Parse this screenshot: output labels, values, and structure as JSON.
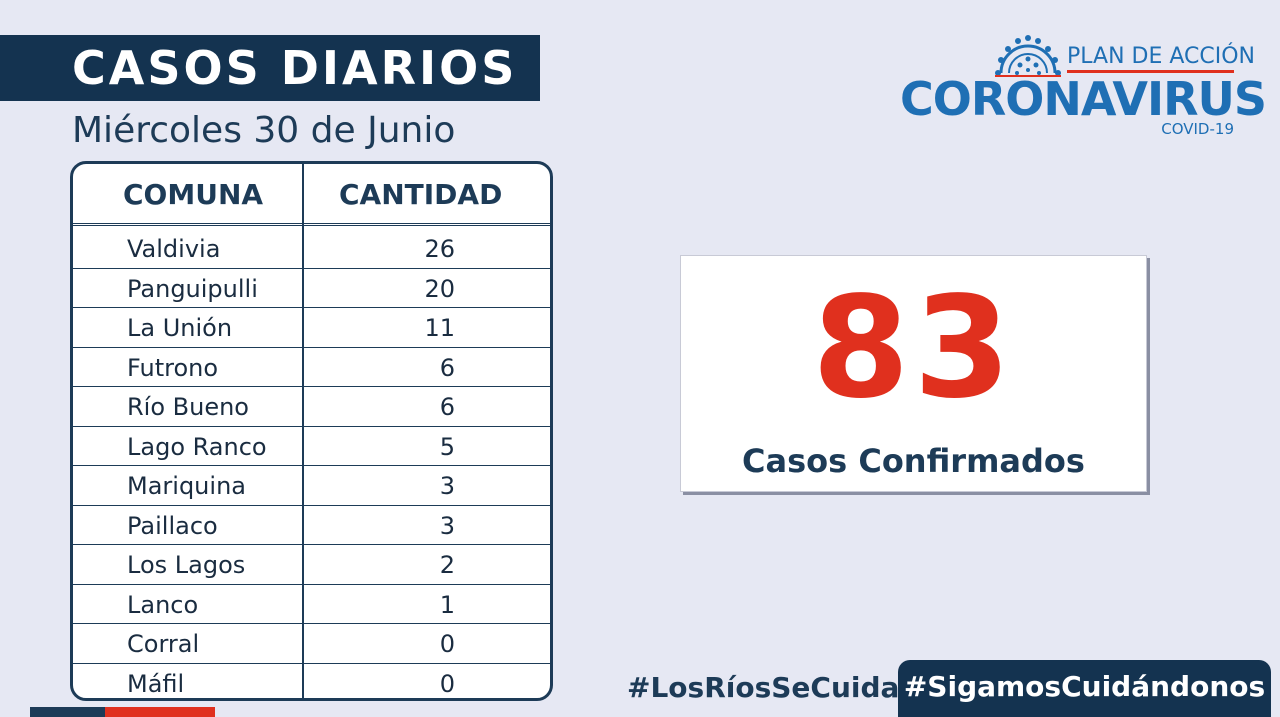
{
  "header": {
    "title": "CASOS DIARIOS",
    "subtitle": "Miércoles 30 de Junio"
  },
  "table": {
    "columns": [
      "COMUNA",
      "CANTIDAD"
    ],
    "rows": [
      {
        "comuna": "Valdivia",
        "cantidad": "26"
      },
      {
        "comuna": "Panguipulli",
        "cantidad": "20"
      },
      {
        "comuna": "La Unión",
        "cantidad": "11"
      },
      {
        "comuna": "Futrono",
        "cantidad": "6"
      },
      {
        "comuna": "Río Bueno",
        "cantidad": "6"
      },
      {
        "comuna": "Lago Ranco",
        "cantidad": "5"
      },
      {
        "comuna": "Mariquina",
        "cantidad": "3"
      },
      {
        "comuna": "Paillaco",
        "cantidad": "3"
      },
      {
        "comuna": "Los Lagos",
        "cantidad": "2"
      },
      {
        "comuna": "Lanco",
        "cantidad": "1"
      },
      {
        "comuna": "Corral",
        "cantidad": "0"
      },
      {
        "comuna": "Máfil",
        "cantidad": "0"
      }
    ]
  },
  "total": {
    "number": "83",
    "label": "Casos Confirmados"
  },
  "logo": {
    "plan": "PLAN DE ACCIÓN",
    "main": "CORONAVIRUS",
    "sub": "COVID-19",
    "icon": "virus-icon"
  },
  "hashtags": {
    "first": "#LosRíosSeCuida",
    "second": "#SigamosCuidándonos"
  },
  "colors": {
    "navy": "#143350",
    "accent_red": "#e0301e",
    "brand_blue": "#1f6fb4",
    "background": "#e6e8f3"
  }
}
